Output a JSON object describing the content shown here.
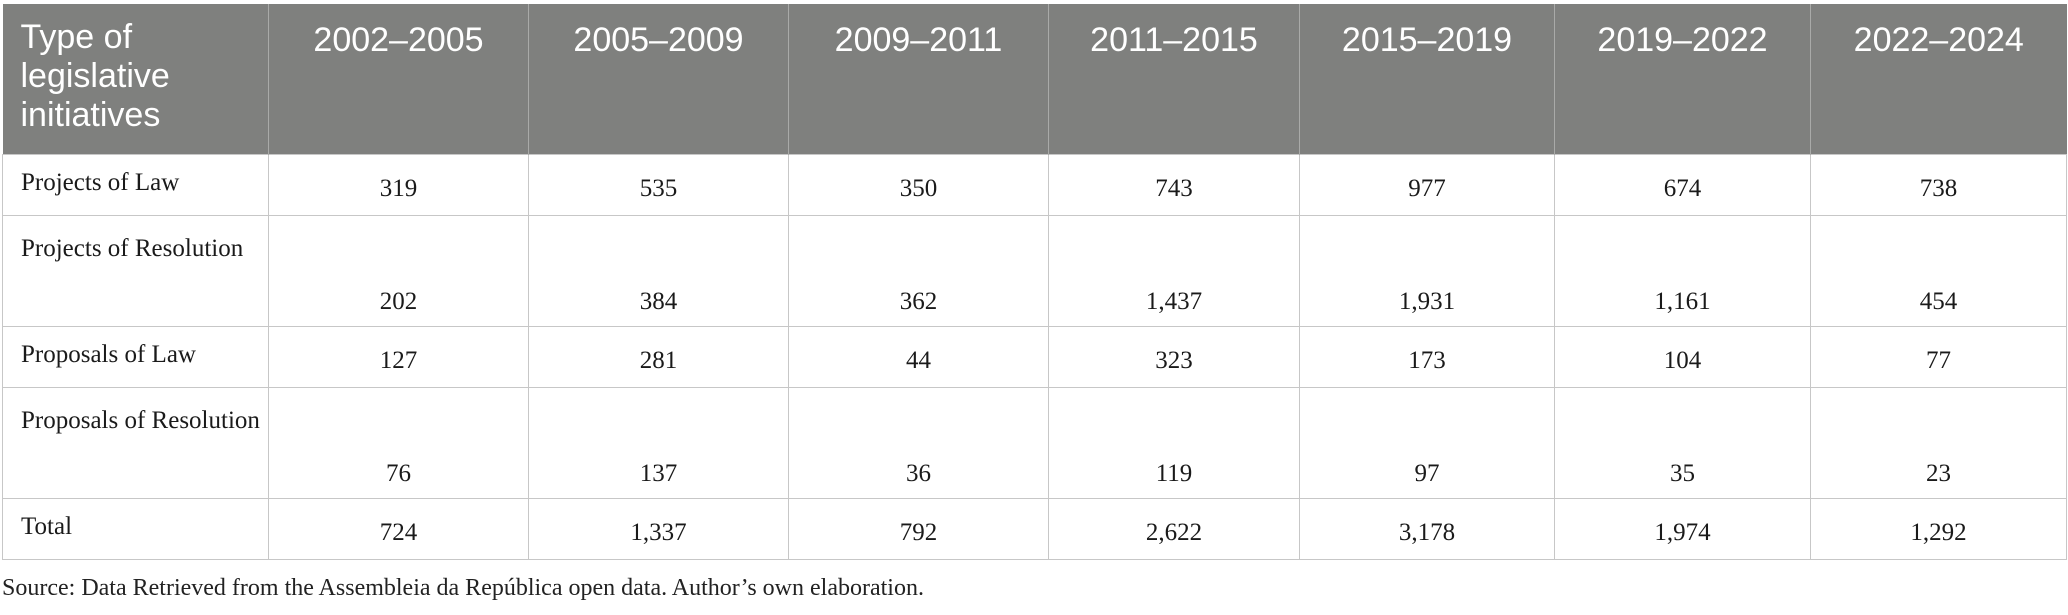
{
  "table": {
    "headers": [
      "Type of legislative initiatives",
      "2002–2005",
      "2005–2009",
      "2009–2011",
      "2011–2015",
      "2015–2019",
      "2019–2022",
      "2022–2024"
    ],
    "rows": [
      {
        "label": "Projects of Law",
        "values": [
          "319",
          "535",
          "350",
          "743",
          "977",
          "674",
          "738"
        ]
      },
      {
        "label": "Projects of Resolution",
        "values": [
          "202",
          "384",
          "362",
          "1,437",
          "1,931",
          "1,161",
          "454"
        ]
      },
      {
        "label": "Proposals of Law",
        "values": [
          "127",
          "281",
          "44",
          "323",
          "173",
          "104",
          "77"
        ]
      },
      {
        "label": "Proposals of Resolution",
        "values": [
          "76",
          "137",
          "36",
          "119",
          "97",
          "35",
          "23"
        ]
      },
      {
        "label": "Total",
        "values": [
          "724",
          "1,337",
          "792",
          "2,622",
          "3,178",
          "1,974",
          "1,292"
        ]
      }
    ]
  },
  "source_note": "Source: Data Retrieved from the Assembleia da República open data. Author’s own elaboration.",
  "colors": {
    "header_background": "#7f807e",
    "header_text": "#ffffff",
    "grid_lines": "#c7c7c7"
  }
}
